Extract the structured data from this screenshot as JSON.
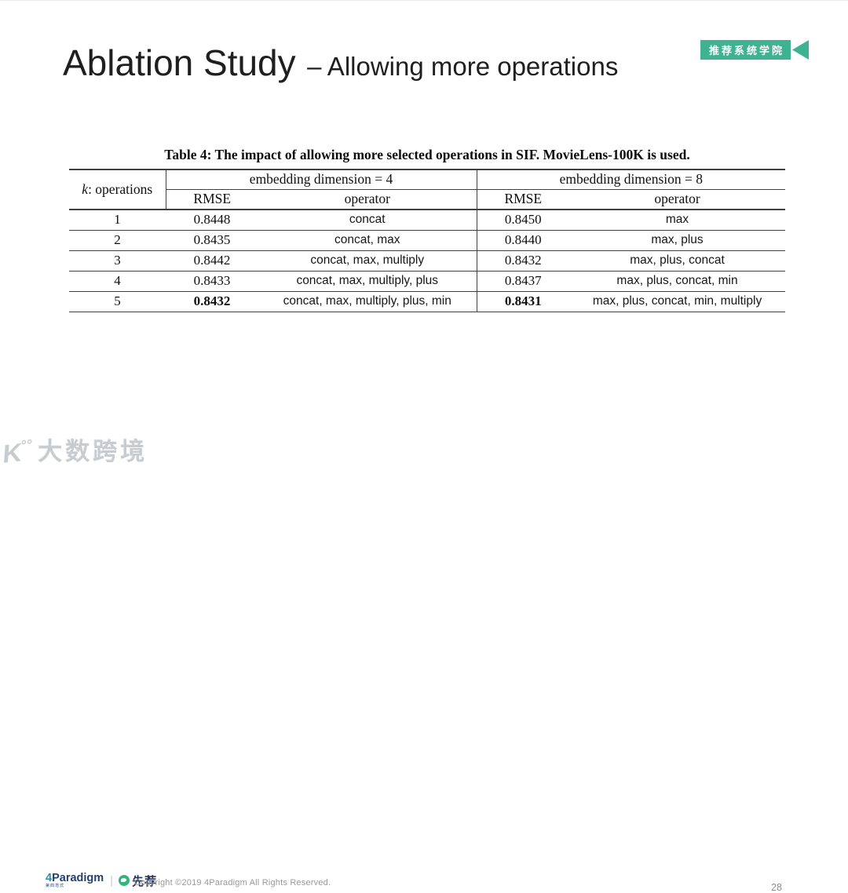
{
  "badge": {
    "label": "推荐系统学院",
    "color": "#3eb291"
  },
  "title": {
    "main": "Ablation Study",
    "sub": "– Allowing more operations"
  },
  "table": {
    "caption": "Table 4: The impact of allowing more selected operations in SIF. MovieLens-100K is used.",
    "k_header_italic": "k",
    "k_header_rest": ": operations",
    "groups": [
      "embedding dimension = 4",
      "embedding dimension = 8"
    ],
    "columns": [
      "RMSE",
      "operator",
      "RMSE",
      "operator"
    ],
    "rows": [
      {
        "k": "1",
        "rmse4": "0.8448",
        "op4": "concat",
        "rmse8": "0.8450",
        "op8": "max",
        "bold": false
      },
      {
        "k": "2",
        "rmse4": "0.8435",
        "op4": "concat, max",
        "rmse8": "0.8440",
        "op8": "max, plus",
        "bold": false
      },
      {
        "k": "3",
        "rmse4": "0.8442",
        "op4": "concat, max, multiply",
        "rmse8": "0.8432",
        "op8": "max, plus, concat",
        "bold": false
      },
      {
        "k": "4",
        "rmse4": "0.8433",
        "op4": "concat, max, multiply, plus",
        "rmse8": "0.8437",
        "op8": "max, plus, concat, min",
        "bold": false
      },
      {
        "k": "5",
        "rmse4": "0.8432",
        "op4": "concat, max, multiply, plus, min",
        "rmse8": "0.8431",
        "op8": "max, plus, concat, min, multiply",
        "bold": true
      }
    ]
  },
  "footer": {
    "brand": "Paradigm",
    "brand_prefix": "4",
    "brand_cn": "第四范式",
    "divider": "|",
    "product": "先荐",
    "copyright": "Copyright ©2019 4Paradigm All Rights Reserved.",
    "page_number": "28"
  },
  "watermark": {
    "logo": "K",
    "logo_marks": "°°",
    "text": "大数跨境"
  }
}
